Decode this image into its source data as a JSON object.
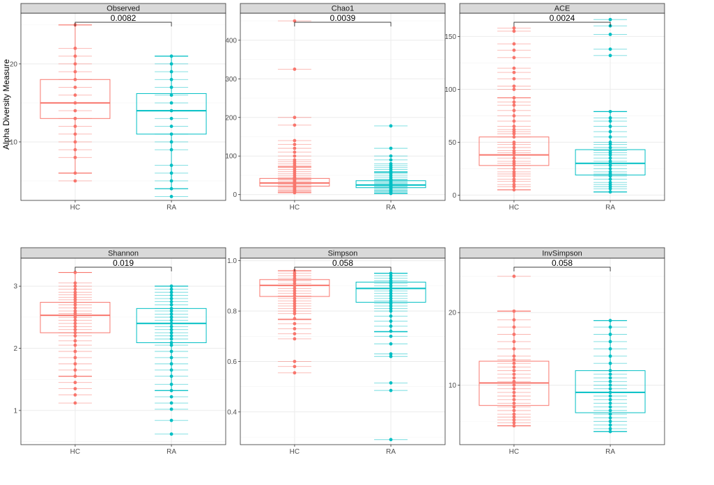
{
  "figure": {
    "y_axis_label": "Alpha Diversity Measure",
    "group_colors": {
      "HC": "#F8766D",
      "RA": "#00BFC4"
    }
  },
  "chart_data": [
    {
      "type": "box",
      "title": "Observed",
      "categories": [
        "HC",
        "RA"
      ],
      "ylim": [
        2.5,
        26.5
      ],
      "yticks": [
        10,
        20
      ],
      "pvalue": "0.0082",
      "boxes": [
        {
          "group": "HC",
          "q1": 13,
          "median": 15,
          "q3": 18,
          "wlow": 6,
          "whigh": 25
        },
        {
          "group": "RA",
          "q1": 11,
          "median": 14,
          "q3": 16.2,
          "wlow": 4,
          "whigh": 21
        }
      ],
      "points": [
        {
          "group": "HC",
          "values": [
            5,
            6,
            8,
            9,
            10,
            11,
            12,
            13,
            14,
            15,
            16,
            17,
            18,
            19,
            20,
            21,
            22,
            25
          ]
        },
        {
          "group": "RA",
          "values": [
            3,
            4,
            5,
            6,
            7,
            9,
            10,
            11,
            12,
            13,
            14,
            15,
            16,
            17,
            18,
            19,
            20,
            21
          ]
        }
      ]
    },
    {
      "type": "box",
      "title": "Chao1",
      "categories": [
        "HC",
        "RA"
      ],
      "ylim": [
        -15,
        470
      ],
      "yticks": [
        0,
        100,
        200,
        300,
        400
      ],
      "pvalue": "0.0039",
      "boxes": [
        {
          "group": "HC",
          "q1": 22,
          "median": 30,
          "q3": 42,
          "wlow": 5,
          "whigh": 72
        },
        {
          "group": "RA",
          "q1": 18,
          "median": 25,
          "q3": 36,
          "wlow": 3,
          "whigh": 58
        }
      ],
      "points": [
        {
          "group": "HC",
          "values": [
            5,
            8,
            10,
            12,
            15,
            18,
            20,
            22,
            25,
            28,
            30,
            32,
            35,
            38,
            40,
            42,
            45,
            50,
            55,
            60,
            65,
            70,
            75,
            80,
            85,
            90,
            100,
            110,
            120,
            130,
            140,
            180,
            200,
            325,
            450
          ]
        },
        {
          "group": "RA",
          "values": [
            3,
            5,
            8,
            10,
            12,
            15,
            18,
            20,
            22,
            25,
            28,
            30,
            32,
            35,
            38,
            40,
            45,
            50,
            55,
            60,
            65,
            70,
            75,
            80,
            90,
            100,
            120,
            178
          ]
        }
      ]
    },
    {
      "type": "box",
      "title": "ACE",
      "categories": [
        "HC",
        "RA"
      ],
      "ylim": [
        -5,
        172
      ],
      "yticks": [
        0,
        50,
        100,
        150
      ],
      "pvalue": "0.0024",
      "boxes": [
        {
          "group": "HC",
          "q1": 28,
          "median": 38,
          "q3": 55,
          "wlow": 5,
          "whigh": 92
        },
        {
          "group": "RA",
          "q1": 19,
          "median": 30,
          "q3": 43,
          "wlow": 3,
          "whigh": 79
        }
      ],
      "points": [
        {
          "group": "HC",
          "values": [
            5,
            8,
            10,
            13,
            15,
            18,
            20,
            22,
            25,
            28,
            30,
            32,
            35,
            38,
            40,
            42,
            45,
            48,
            50,
            55,
            58,
            60,
            62,
            65,
            70,
            75,
            80,
            85,
            88,
            92,
            100,
            103,
            110,
            116,
            120,
            130,
            137,
            143,
            155,
            158
          ]
        },
        {
          "group": "RA",
          "values": [
            3,
            6,
            8,
            10,
            12,
            15,
            18,
            20,
            22,
            25,
            28,
            30,
            32,
            35,
            38,
            40,
            42,
            45,
            48,
            50,
            55,
            60,
            65,
            70,
            73,
            79,
            132,
            138,
            152,
            160,
            166
          ]
        }
      ]
    },
    {
      "type": "box",
      "title": "Shannon",
      "categories": [
        "HC",
        "RA"
      ],
      "ylim": [
        0.45,
        3.45
      ],
      "yticks": [
        1,
        2,
        3
      ],
      "pvalue": "0.019",
      "boxes": [
        {
          "group": "HC",
          "q1": 2.25,
          "median": 2.53,
          "q3": 2.74,
          "wlow": 1.55,
          "whigh": 3.22
        },
        {
          "group": "RA",
          "q1": 2.09,
          "median": 2.4,
          "q3": 2.64,
          "wlow": 1.32,
          "whigh": 3.0
        }
      ],
      "points": [
        {
          "group": "HC",
          "values": [
            1.12,
            1.25,
            1.35,
            1.45,
            1.55,
            1.65,
            1.75,
            1.85,
            1.95,
            2.05,
            2.12,
            2.2,
            2.25,
            2.3,
            2.35,
            2.4,
            2.45,
            2.5,
            2.53,
            2.56,
            2.6,
            2.65,
            2.7,
            2.74,
            2.78,
            2.82,
            2.86,
            2.9,
            2.95,
            3.0,
            3.05,
            3.22
          ]
        },
        {
          "group": "RA",
          "values": [
            0.62,
            0.84,
            1.02,
            1.12,
            1.22,
            1.32,
            1.42,
            1.55,
            1.65,
            1.75,
            1.85,
            1.95,
            2.05,
            2.09,
            2.15,
            2.2,
            2.25,
            2.3,
            2.35,
            2.4,
            2.45,
            2.5,
            2.55,
            2.6,
            2.64,
            2.7,
            2.75,
            2.8,
            2.85,
            2.9,
            2.95,
            3.0
          ]
        }
      ]
    },
    {
      "type": "box",
      "title": "Simpson",
      "categories": [
        "HC",
        "RA"
      ],
      "ylim": [
        0.27,
        1.01
      ],
      "yticks": [
        0.4,
        0.6,
        0.8,
        1.0
      ],
      "ytick_labels": [
        "0.4",
        "0.6",
        "0.8",
        "1.0"
      ],
      "pvalue": "0.058",
      "boxes": [
        {
          "group": "HC",
          "q1": 0.858,
          "median": 0.902,
          "q3": 0.925,
          "wlow": 0.766,
          "whigh": 0.96
        },
        {
          "group": "RA",
          "q1": 0.835,
          "median": 0.89,
          "q3": 0.915,
          "wlow": 0.718,
          "whigh": 0.95
        }
      ],
      "points": [
        {
          "group": "HC",
          "values": [
            0.555,
            0.58,
            0.6,
            0.69,
            0.71,
            0.73,
            0.75,
            0.77,
            0.79,
            0.8,
            0.81,
            0.82,
            0.83,
            0.84,
            0.85,
            0.86,
            0.87,
            0.88,
            0.89,
            0.9,
            0.91,
            0.92,
            0.93,
            0.94,
            0.95,
            0.96
          ]
        },
        {
          "group": "RA",
          "values": [
            0.29,
            0.485,
            0.515,
            0.62,
            0.63,
            0.67,
            0.7,
            0.72,
            0.74,
            0.76,
            0.78,
            0.8,
            0.81,
            0.82,
            0.83,
            0.84,
            0.85,
            0.86,
            0.87,
            0.88,
            0.89,
            0.9,
            0.91,
            0.92,
            0.93,
            0.94,
            0.95
          ]
        }
      ]
    },
    {
      "type": "box",
      "title": "InvSimpson",
      "categories": [
        "HC",
        "RA"
      ],
      "ylim": [
        1.8,
        27.5
      ],
      "yticks": [
        10,
        20
      ],
      "pvalue": "0.058",
      "boxes": [
        {
          "group": "HC",
          "q1": 7.2,
          "median": 10.3,
          "q3": 13.3,
          "wlow": 4.4,
          "whigh": 20.2
        },
        {
          "group": "RA",
          "q1": 6.2,
          "median": 9.0,
          "q3": 12.0,
          "wlow": 3.6,
          "whigh": 18.9
        }
      ],
      "points": [
        {
          "group": "HC",
          "values": [
            4.4,
            4.8,
            5.2,
            5.6,
            6.0,
            6.5,
            7.0,
            7.5,
            8.0,
            8.5,
            9.0,
            9.5,
            10.0,
            10.5,
            11.0,
            11.5,
            12.0,
            12.5,
            13.0,
            13.5,
            14.0,
            15.0,
            16.0,
            17.0,
            18.0,
            19.0,
            20.2,
            25.0
          ]
        },
        {
          "group": "RA",
          "values": [
            3.6,
            4.0,
            4.5,
            5.0,
            5.5,
            6.0,
            6.5,
            7.0,
            7.5,
            8.0,
            8.5,
            9.0,
            9.5,
            10.0,
            10.5,
            11.0,
            11.5,
            12.0,
            13.0,
            14.0,
            15.0,
            16.0,
            17.0,
            18.0,
            18.9
          ]
        }
      ]
    }
  ]
}
